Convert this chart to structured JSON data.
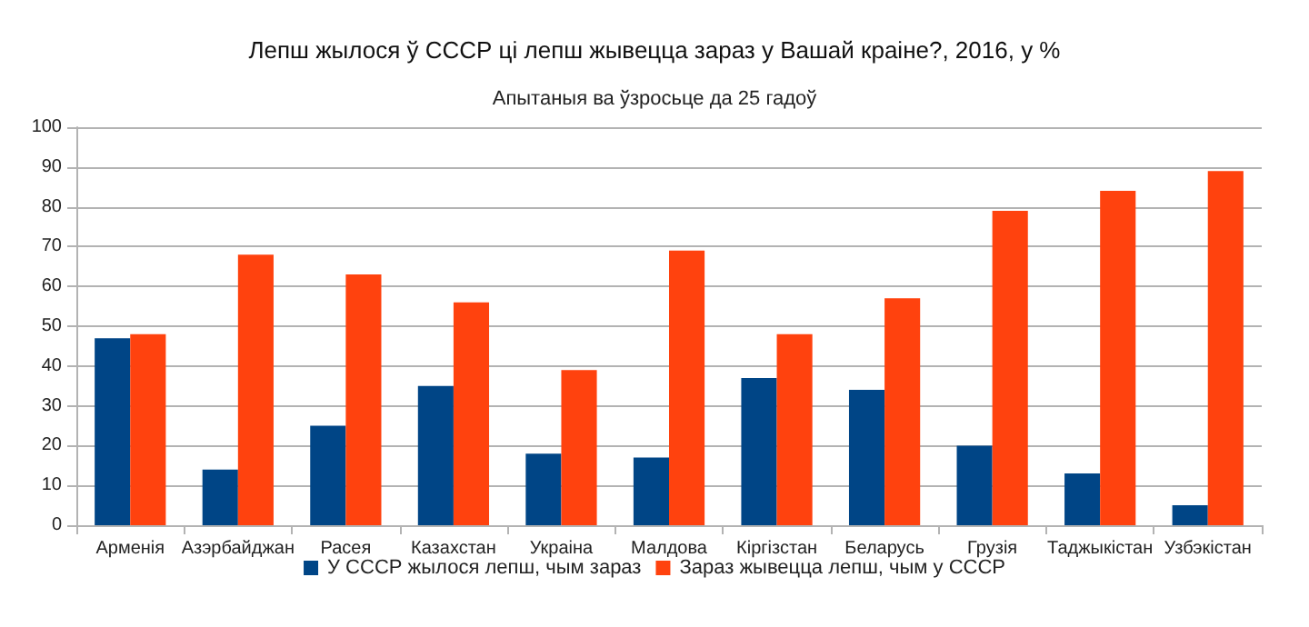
{
  "chart_data": {
    "type": "bar",
    "title": "Лепш жылося ў СССР ці лепш жывецца зараз у Вашай краіне?, 2016, у %",
    "subtitle": "Апытаныя ва ўзросьце да 25 гадоў",
    "categories": [
      "Арменія",
      "Азэрбайджан",
      "Расея",
      "Казахстан",
      "Украіна",
      "Малдова",
      "Кіргізстан",
      "Беларусь",
      "Грузія",
      "Таджыкістан",
      "Узбэкістан"
    ],
    "series": [
      {
        "name": "У СССР жылося лепш, чым зараз",
        "color": "#004586",
        "values": [
          47,
          14,
          25,
          35,
          18,
          17,
          37,
          34,
          20,
          13,
          5
        ]
      },
      {
        "name": "Зараз жывецца лепш, чым у СССР",
        "color": "#ff420e",
        "values": [
          48,
          68,
          63,
          56,
          39,
          69,
          48,
          57,
          79,
          84,
          89
        ]
      }
    ],
    "ylim": [
      0,
      100
    ],
    "yticks": [
      0,
      10,
      20,
      30,
      40,
      50,
      60,
      70,
      80,
      90,
      100
    ],
    "grid": "y",
    "legend": "bottom"
  }
}
